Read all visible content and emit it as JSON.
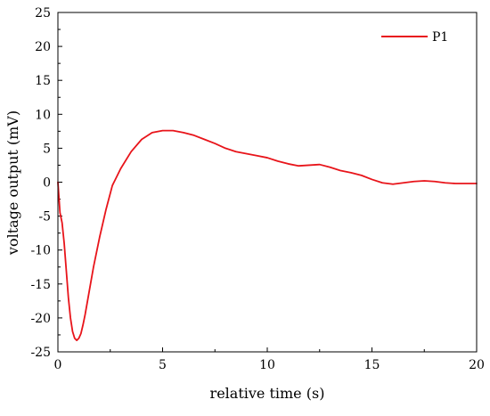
{
  "chart_data": {
    "type": "line",
    "title": "",
    "xlabel": "relative time (s)",
    "ylabel": "voltage output (mV)",
    "xlim": [
      0,
      20
    ],
    "ylim": [
      -25,
      25
    ],
    "x_ticks": [
      0,
      5,
      10,
      15,
      20
    ],
    "y_ticks": [
      -25,
      -20,
      -15,
      -10,
      -5,
      0,
      5,
      10,
      15,
      20,
      25
    ],
    "grid": false,
    "legend_position": "top-right",
    "series": [
      {
        "name": "P1",
        "color": "#e8141a",
        "x": [
          0,
          0.1,
          0.2,
          0.3,
          0.4,
          0.5,
          0.6,
          0.7,
          0.8,
          0.9,
          1.0,
          1.1,
          1.2,
          1.3,
          1.5,
          1.7,
          2.0,
          2.3,
          2.6,
          3.0,
          3.5,
          4.0,
          4.5,
          5.0,
          5.5,
          6.0,
          6.5,
          7.0,
          7.5,
          8.0,
          8.5,
          9.0,
          9.5,
          10.0,
          10.5,
          11.0,
          11.5,
          12.0,
          12.5,
          13.0,
          13.5,
          14.0,
          14.5,
          15.0,
          15.5,
          16.0,
          16.5,
          17.0,
          17.5,
          18.0,
          18.5,
          19.0,
          19.5,
          20.0
        ],
        "y": [
          0,
          -4.5,
          -6.0,
          -9.0,
          -13.0,
          -17.0,
          -20.0,
          -22.0,
          -23.0,
          -23.3,
          -23.0,
          -22.3,
          -21.0,
          -19.5,
          -16.0,
          -12.5,
          -8.0,
          -4.0,
          -0.5,
          2.0,
          4.5,
          6.3,
          7.3,
          7.6,
          7.6,
          7.3,
          6.9,
          6.3,
          5.7,
          5.0,
          4.5,
          4.2,
          3.9,
          3.6,
          3.1,
          2.7,
          2.4,
          2.5,
          2.6,
          2.2,
          1.7,
          1.4,
          1.0,
          0.4,
          -0.1,
          -0.3,
          -0.1,
          0.1,
          0.2,
          0.1,
          -0.1,
          -0.2,
          -0.2,
          -0.2
        ]
      }
    ]
  }
}
